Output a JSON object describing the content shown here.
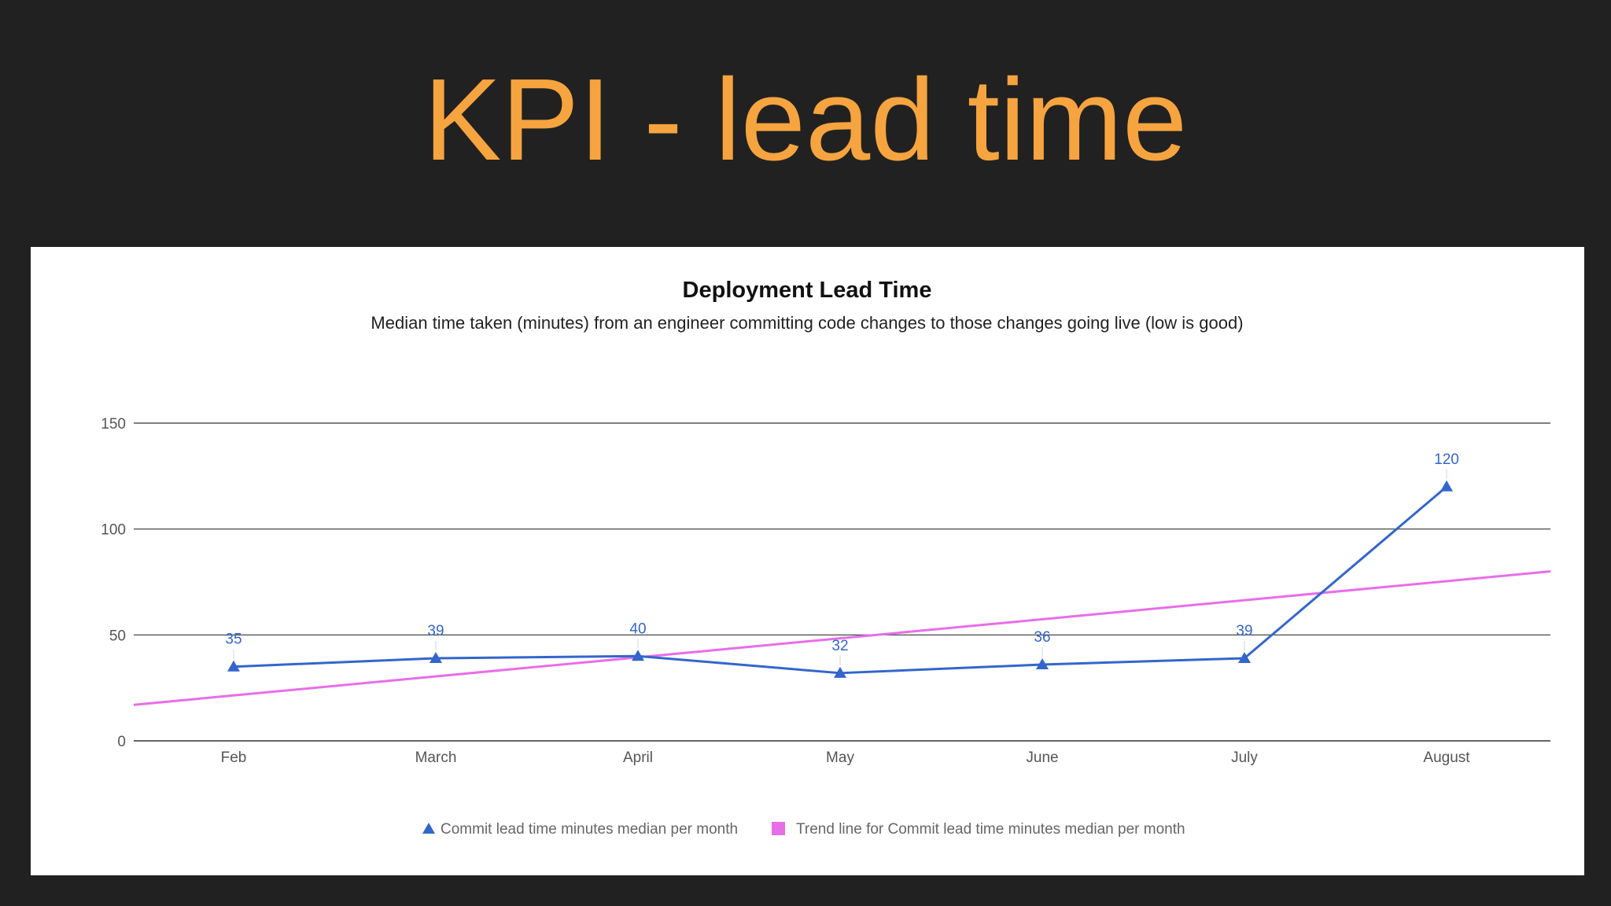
{
  "slide": {
    "title": "KPI - lead time"
  },
  "colors": {
    "background": "#212121",
    "title": "#f6a43f",
    "series": "#3366cc",
    "trend": "#e86ee8",
    "gridline": "#333333"
  },
  "chart_data": {
    "type": "line",
    "title": "Deployment Lead Time",
    "subtitle": "Median time taken (minutes) from an engineer committing code changes to those changes going live (low is good)",
    "xlabel": "",
    "ylabel": "",
    "categories": [
      "Feb",
      "March",
      "April",
      "May",
      "June",
      "July",
      "August"
    ],
    "ylim": [
      0,
      150
    ],
    "yticks": [
      0,
      50,
      100,
      150
    ],
    "grid": true,
    "legend_position": "bottom",
    "series": [
      {
        "name": "Commit lead time minutes median per month",
        "marker": "triangle",
        "values": [
          35,
          39,
          40,
          32,
          36,
          39,
          120
        ],
        "data_labels": [
          "35",
          "39",
          "40",
          "32",
          "36",
          "39",
          "120"
        ]
      }
    ],
    "trendline": {
      "name": "Trend line for Commit lead time minutes median per month",
      "type": "linear",
      "start_value": 17,
      "end_value": 80
    }
  }
}
